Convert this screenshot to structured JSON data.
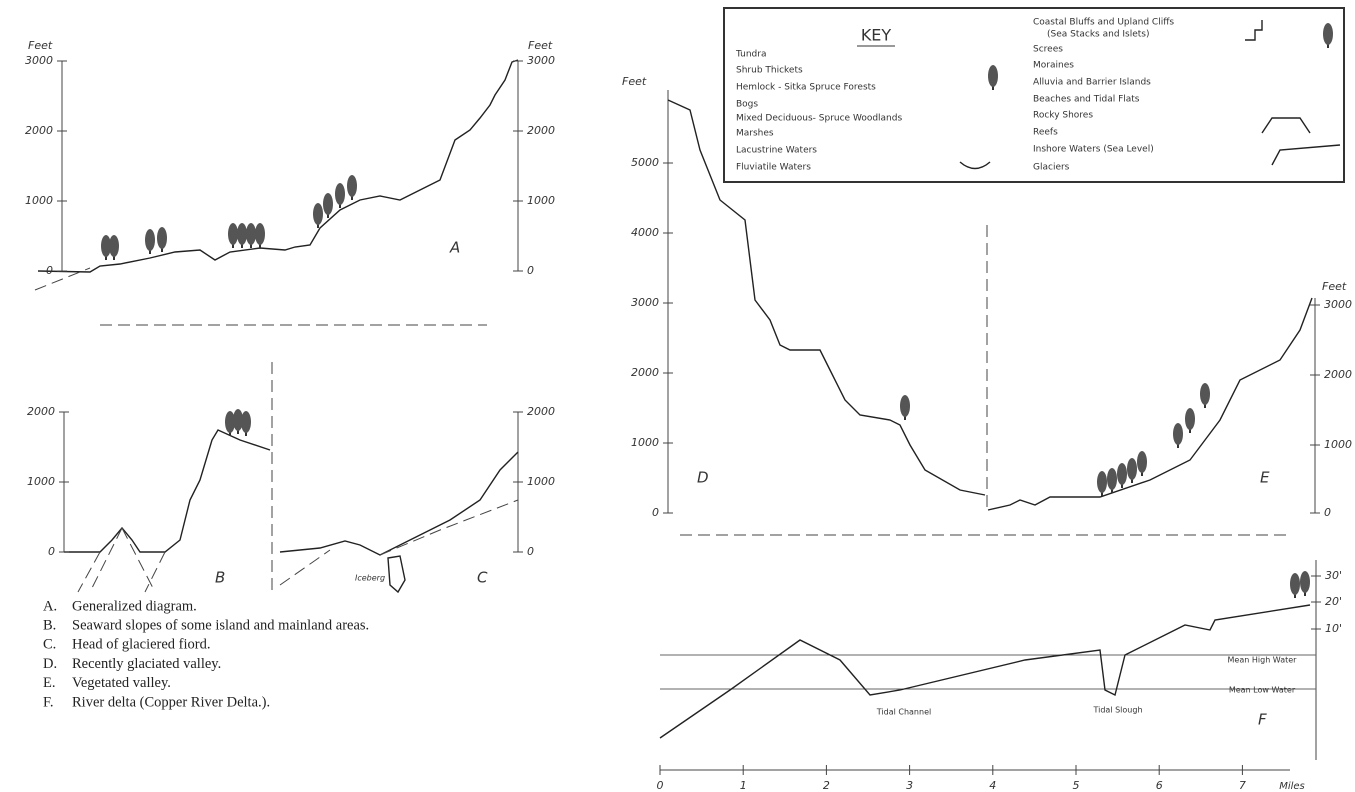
{
  "panel_a": {
    "left_axis": {
      "unit": "Feet",
      "ticks": [
        "3000",
        "2000",
        "1000",
        "0"
      ]
    },
    "right_axis": {
      "unit": "Feet",
      "ticks": [
        "3000",
        "2000",
        "1000",
        "0"
      ]
    },
    "letter": "A"
  },
  "panel_b": {
    "axis": {
      "ticks": [
        "2000",
        "1000",
        "0"
      ]
    },
    "letter": "B"
  },
  "panel_c": {
    "axis": {
      "ticks": [
        "2000",
        "1000",
        "0"
      ]
    },
    "letter": "C",
    "label": "Iceberg"
  },
  "panel_d": {
    "axis": {
      "unit": "Feet",
      "ticks": [
        "5000",
        "4000",
        "3000",
        "2000",
        "1000",
        "0"
      ]
    },
    "letter": "D"
  },
  "panel_e": {
    "axis": {
      "unit": "Feet",
      "ticks": [
        "3000",
        "2000",
        "1000",
        "0"
      ]
    },
    "letter": "E"
  },
  "panel_f": {
    "axis": {
      "ticks": [
        "30'",
        "20'",
        "10'"
      ]
    },
    "letter": "F",
    "mean_high": "Mean High Water",
    "mean_low": "Mean Low Water",
    "tidal_channel": "Tidal Channel",
    "tidal_slough": "Tidal Slough",
    "x_axis": {
      "ticks": [
        "0",
        "1",
        "2",
        "3",
        "4",
        "5",
        "6",
        "7"
      ],
      "unit": "Miles"
    }
  },
  "key": {
    "title": "KEY",
    "left": [
      "Tundra",
      "Shrub Thickets",
      "Hemlock - Sitka Spruce Forests",
      "Bogs",
      "Mixed Deciduous- Spruce Woodlands",
      "Marshes",
      "Lacustrine Waters",
      "Fluviatile Waters"
    ],
    "right": [
      "Coastal Bluffs and Upland Cliffs",
      "(Sea Stacks and Islets)",
      "Screes",
      "Moraines",
      "Alluvia and Barrier Islands",
      "Beaches and Tidal Flats",
      "Rocky Shores",
      "Reefs",
      "Inshore Waters (Sea Level)",
      "Glaciers"
    ]
  },
  "captions": [
    {
      "letter": "A.",
      "text": "Generalized diagram."
    },
    {
      "letter": "B.",
      "text": "Seaward slopes of some island and mainland areas."
    },
    {
      "letter": "C.",
      "text": "Head of glaciered fiord."
    },
    {
      "letter": "D.",
      "text": "Recently glaciated valley."
    },
    {
      "letter": "E.",
      "text": "Vegetated valley."
    },
    {
      "letter": "F.",
      "text": "River delta (Copper River Delta.)."
    }
  ]
}
